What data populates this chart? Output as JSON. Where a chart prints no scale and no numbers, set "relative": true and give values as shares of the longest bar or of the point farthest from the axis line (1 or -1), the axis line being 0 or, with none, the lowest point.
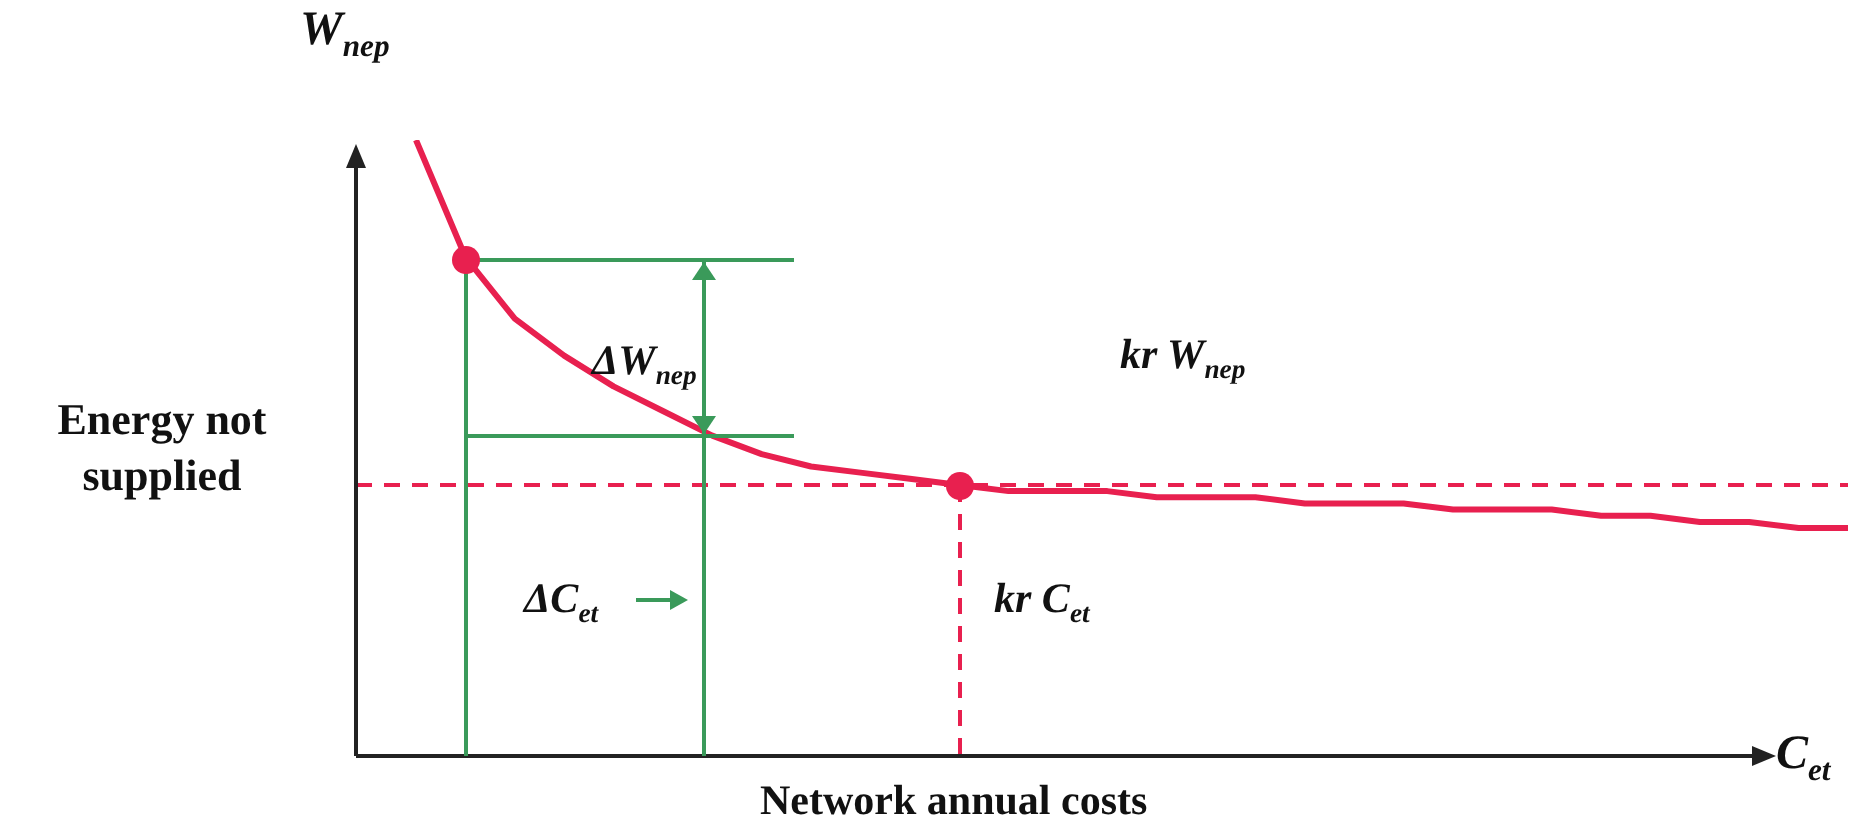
{
  "chart_data": {
    "type": "line",
    "relative": true,
    "xlabel": "Network annual costs",
    "ylabel": "Energy not supplied",
    "categories": [
      null,
      null,
      null,
      null,
      null,
      null,
      null,
      null,
      null,
      null,
      null,
      null,
      null,
      null,
      null,
      null,
      null,
      null,
      null,
      null,
      null,
      null,
      null,
      null,
      null,
      null,
      null,
      null,
      null,
      null
    ],
    "series": [
      {
        "color": "#e8204f",
        "values": [
          1.0,
          0.81,
          0.71,
          0.65,
          0.6,
          0.56,
          0.52,
          0.49,
          0.47,
          0.46,
          0.45,
          0.44,
          0.43,
          0.43,
          0.43,
          0.42,
          0.42,
          0.42,
          0.41,
          0.41,
          0.41,
          0.4,
          0.4,
          0.4,
          0.39,
          0.39,
          0.38,
          0.38,
          0.37,
          0.37
        ]
      }
    ],
    "ref_lines": [
      {
        "axis": "y",
        "value": 0.44,
        "color": "#e8204f",
        "line_style": "dashed"
      }
    ],
    "annotations": [
      "W$_{nep}$",
      "C$_{et}$",
      "ΔW$_{nep}$",
      "ΔC$_{et}$",
      "kr W$_{nep}$",
      "kr C$_{et}$"
    ],
    "marker": "none",
    "line_style": "solid",
    "legend": false
  }
}
